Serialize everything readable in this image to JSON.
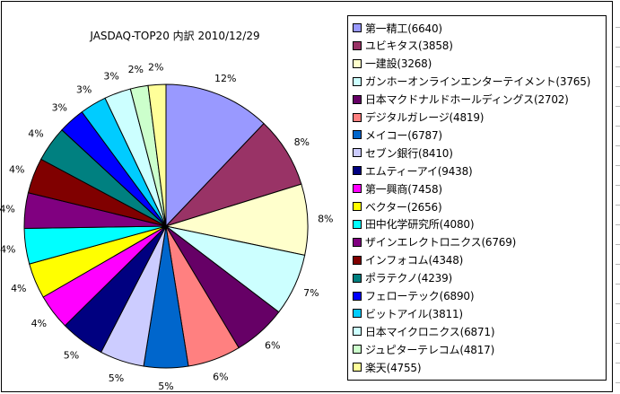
{
  "chart_data": {
    "type": "pie",
    "title": "JASDAQ-TOP20 内訳 2010/12/29",
    "legend_position": "right",
    "start_angle_deg": 0,
    "direction": "clockwise",
    "slices": [
      {
        "label": "第一精工(6640)",
        "value": 12,
        "display": "12%",
        "color": "#9999ff"
      },
      {
        "label": "ユビキタス(3858)",
        "value": 8,
        "display": "8%",
        "color": "#993366"
      },
      {
        "label": "一建設(3268)",
        "value": 8,
        "display": "8%",
        "color": "#ffffcc"
      },
      {
        "label": "ガンホーオンラインエンターテイメント(3765)",
        "value": 7,
        "display": "7%",
        "color": "#ccffff"
      },
      {
        "label": "日本マクドナルドホールディングス(2702)",
        "value": 6,
        "display": "6%",
        "color": "#660066"
      },
      {
        "label": "デジタルガレージ(4819)",
        "value": 6,
        "display": "6%",
        "color": "#ff8080"
      },
      {
        "label": "メイコー(6787)",
        "value": 5,
        "display": "5%",
        "color": "#0066cc"
      },
      {
        "label": "セブン銀行(8410)",
        "value": 5,
        "display": "5%",
        "color": "#ccccff"
      },
      {
        "label": "エムティーアイ(9438)",
        "value": 5,
        "display": "5%",
        "color": "#000080"
      },
      {
        "label": "第一興商(7458)",
        "value": 4,
        "display": "4%",
        "color": "#ff00ff"
      },
      {
        "label": "ベクター(2656)",
        "value": 4,
        "display": "4%",
        "color": "#ffff00"
      },
      {
        "label": "田中化学研究所(4080)",
        "value": 4,
        "display": "4%",
        "color": "#00ffff"
      },
      {
        "label": "ザインエレクトロニクス(6769)",
        "value": 4,
        "display": "4%",
        "color": "#800080"
      },
      {
        "label": "インフォコム(4348)",
        "value": 4,
        "display": "4%",
        "color": "#800000"
      },
      {
        "label": "ポラテクノ(4239)",
        "value": 4,
        "display": "4%",
        "color": "#008080"
      },
      {
        "label": "フェローテック(6890)",
        "value": 3,
        "display": "3%",
        "color": "#0000ff"
      },
      {
        "label": "ビットアイル(3811)",
        "value": 3,
        "display": "3%",
        "color": "#00ccff"
      },
      {
        "label": "日本マイクロニクス(6871)",
        "value": 3,
        "display": "3%",
        "color": "#ccffff"
      },
      {
        "label": "ジュピターテレコム(4817)",
        "value": 2,
        "display": "2%",
        "color": "#ccffcc"
      },
      {
        "label": "楽天(4755)",
        "value": 2,
        "display": "2%",
        "color": "#ffff99"
      }
    ]
  }
}
